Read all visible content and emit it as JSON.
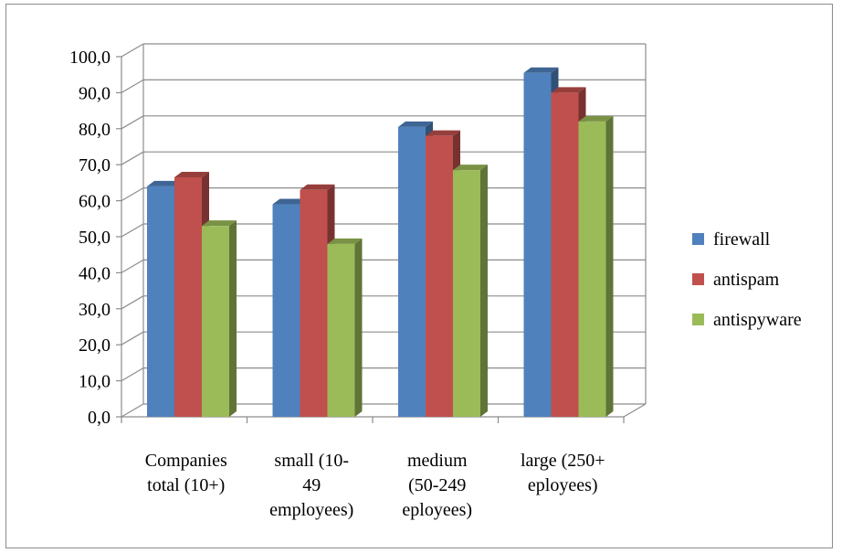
{
  "chart_data": {
    "type": "bar",
    "categories": [
      [
        "Companies",
        "total (10+)"
      ],
      [
        "small (10-",
        "49",
        "employees)"
      ],
      [
        "medium",
        "(50-249",
        "eployees)"
      ],
      [
        "large (250+",
        "eployees)"
      ]
    ],
    "series": [
      {
        "name": "firewall",
        "color": "#4f81bd",
        "values": [
          64.0,
          59.0,
          80.5,
          95.5
        ]
      },
      {
        "name": "antispam",
        "color": "#c0504d",
        "values": [
          66.5,
          63.0,
          78.0,
          90.0
        ]
      },
      {
        "name": "antispyware",
        "color": "#9bbb59",
        "values": [
          53.0,
          48.0,
          68.5,
          82.0
        ]
      }
    ],
    "yticks": [
      "0,0",
      "10,0",
      "20,0",
      "30,0",
      "40,0",
      "50,0",
      "60,0",
      "70,0",
      "80,0",
      "90,0",
      "100,0"
    ],
    "ylim": [
      0,
      100
    ],
    "grid": true,
    "legend_position": "right",
    "style": "3d-clustered-column"
  }
}
